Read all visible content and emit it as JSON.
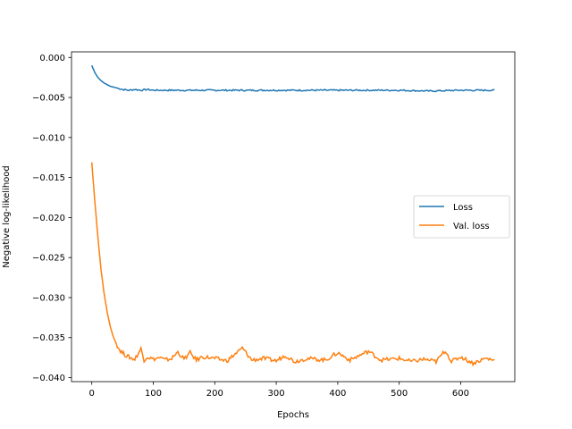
{
  "chart_data": {
    "type": "line",
    "title": "",
    "xlabel": "Epochs",
    "ylabel": "Negative log-likelihood",
    "xlim": [
      -33,
      688
    ],
    "ylim": [
      -0.0405,
      0.0007
    ],
    "xticks": [
      0,
      100,
      200,
      300,
      400,
      500,
      600
    ],
    "xtick_labels": [
      "0",
      "100",
      "200",
      "300",
      "400",
      "500",
      "600"
    ],
    "yticks": [
      0.0,
      -0.005,
      -0.01,
      -0.015,
      -0.02,
      -0.025,
      -0.03,
      -0.035,
      -0.04
    ],
    "ytick_labels": [
      "0.000",
      "−0.005",
      "−0.010",
      "−0.015",
      "−0.020",
      "−0.025",
      "−0.030",
      "−0.035",
      "−0.040"
    ],
    "grid": false,
    "legend_position": "center-right",
    "series": [
      {
        "name": "Loss",
        "color": "#1f77b4",
        "x": [
          0,
          5,
          10,
          15,
          20,
          25,
          30,
          35,
          40,
          45,
          50,
          60,
          70,
          80,
          90,
          100,
          120,
          140,
          160,
          180,
          200,
          250,
          300,
          350,
          400,
          450,
          500,
          550,
          600,
          655
        ],
        "y": [
          -0.001,
          -0.0019,
          -0.0025,
          -0.0029,
          -0.0032,
          -0.0034,
          -0.0036,
          -0.0037,
          -0.0038,
          -0.0039,
          -0.004,
          -0.0041,
          -0.004,
          -0.0041,
          -0.004,
          -0.0041,
          -0.0041,
          -0.0041,
          -0.0041,
          -0.0041,
          -0.0041,
          -0.0041,
          -0.0041,
          -0.0041,
          -0.0041,
          -0.0041,
          -0.0041,
          -0.0042,
          -0.0041,
          -0.0041
        ]
      },
      {
        "name": "Val. loss",
        "color": "#ff7f0e",
        "x": [
          0,
          5,
          10,
          15,
          20,
          25,
          30,
          35,
          40,
          45,
          50,
          55,
          60,
          65,
          70,
          80,
          85,
          90,
          100,
          110,
          120,
          130,
          140,
          150,
          160,
          170,
          180,
          200,
          220,
          245,
          260,
          280,
          300,
          315,
          330,
          350,
          380,
          400,
          420,
          450,
          470,
          500,
          520,
          540,
          560,
          575,
          585,
          600,
          620,
          640,
          655
        ],
        "y": [
          -0.0131,
          -0.018,
          -0.0225,
          -0.0265,
          -0.0295,
          -0.0318,
          -0.0336,
          -0.0349,
          -0.0358,
          -0.0365,
          -0.0369,
          -0.0372,
          -0.0374,
          -0.0376,
          -0.0377,
          -0.0364,
          -0.0378,
          -0.0374,
          -0.0377,
          -0.0375,
          -0.0378,
          -0.0376,
          -0.0368,
          -0.0377,
          -0.0369,
          -0.0378,
          -0.0374,
          -0.0376,
          -0.0379,
          -0.0363,
          -0.0378,
          -0.0376,
          -0.0379,
          -0.0372,
          -0.038,
          -0.0376,
          -0.0378,
          -0.0369,
          -0.0378,
          -0.0367,
          -0.0378,
          -0.0376,
          -0.038,
          -0.0377,
          -0.038,
          -0.0366,
          -0.038,
          -0.0374,
          -0.0382,
          -0.0376,
          -0.0378
        ]
      }
    ]
  }
}
